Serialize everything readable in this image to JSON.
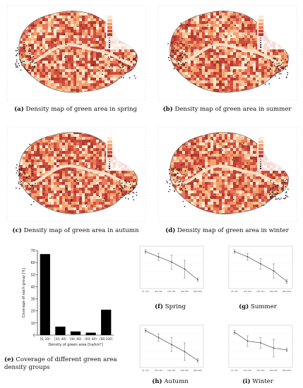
{
  "panels": {
    "a": {
      "letter": "(a)",
      "caption": "Density map of green area in spring"
    },
    "b": {
      "letter": "(b)",
      "caption": "Density map of green area in summer"
    },
    "c": {
      "letter": "(c)",
      "caption": "Density map of green area in autumn"
    },
    "d": {
      "letter": "(d)",
      "caption": "Density map of green area in winter"
    },
    "e": {
      "letter": "(e)",
      "caption_line1": "Coverage of different green area",
      "caption_line2": "density groups"
    },
    "f": {
      "letter": "(f)",
      "caption": "Spring"
    },
    "g": {
      "letter": "(g)",
      "caption": "Summer"
    },
    "h": {
      "letter": "(h)",
      "caption": "Autumn"
    },
    "i": {
      "letter": "(i)",
      "caption": "Winter"
    }
  },
  "colors": {
    "low": "#fde9cf",
    "mid": "#f2a26e",
    "high": "#cf4e3f",
    "darker": "#b33a31",
    "dot": "#1a1a1a",
    "bar": "#000000",
    "line": "#666666"
  },
  "chart_data": [
    {
      "type": "bar",
      "categories": [
        "[0, 20)",
        "[20, 40)",
        "[40, 60)",
        "[60, 80)",
        "[80,100]"
      ],
      "values": [
        67,
        7,
        3,
        2,
        21
      ],
      "ylabel": "Coverage of each group [%]",
      "xlabel": "Density of green area [ha/km²]",
      "ylim": [
        0,
        70
      ],
      "yticks": [
        "0",
        "10",
        "20",
        "30",
        "40",
        "50",
        "60",
        "70"
      ]
    },
    {
      "type": "line",
      "panel": "f",
      "categories": [
        "[0, 20)",
        "[20, 40)",
        "[40, 60)",
        "[60, 80)",
        "[80,100]"
      ],
      "values": [
        0.9,
        0.6,
        0.3,
        -0.1,
        -0.7
      ],
      "errors": [
        0.1,
        0.2,
        0.4,
        0.5,
        0.1
      ]
    },
    {
      "type": "line",
      "panel": "g",
      "categories": [
        "[0, 20)",
        "[20, 40)",
        "[40, 60)",
        "[60, 80)",
        "[80,100]"
      ],
      "values": [
        0.9,
        0.6,
        0.2,
        -0.2,
        -0.8
      ],
      "errors": [
        0.1,
        0.2,
        0.3,
        0.4,
        0.1
      ]
    },
    {
      "type": "line",
      "panel": "h",
      "categories": [
        "[0, 20)",
        "[20, 40)",
        "[40, 60)",
        "[60, 80)",
        "[80,100]"
      ],
      "values": [
        0.9,
        0.5,
        0.1,
        -0.3,
        -0.8
      ],
      "errors": [
        0.1,
        0.2,
        0.4,
        0.5,
        0.1
      ]
    },
    {
      "type": "line",
      "panel": "i",
      "categories": [
        "[0, 20)",
        "[20, 40)",
        "[40, 60)",
        "[60, 80)",
        "[80,100]"
      ],
      "values": [
        0.8,
        0.3,
        0.2,
        -0.1,
        -0.2
      ],
      "errors": [
        0.1,
        0.3,
        0.3,
        0.5,
        0.1
      ]
    }
  ]
}
